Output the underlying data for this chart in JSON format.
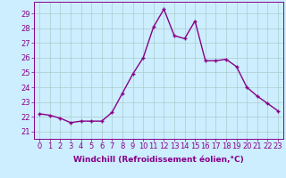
{
  "x": [
    0,
    1,
    2,
    3,
    4,
    5,
    6,
    7,
    8,
    9,
    10,
    11,
    12,
    13,
    14,
    15,
    16,
    17,
    18,
    19,
    20,
    21,
    22,
    23
  ],
  "y": [
    22.2,
    22.1,
    21.9,
    21.6,
    21.7,
    21.7,
    21.7,
    22.3,
    23.6,
    24.9,
    26.0,
    28.1,
    29.3,
    27.5,
    27.3,
    28.5,
    25.8,
    25.8,
    25.9,
    25.4,
    24.0,
    23.4,
    22.9,
    22.4
  ],
  "line_color": "#880088",
  "marker": "+",
  "bg_color": "#cceeff",
  "grid_color": "#aacccc",
  "xlabel": "Windchill (Refroidissement éolien,°C)",
  "ylabel_ticks": [
    21,
    22,
    23,
    24,
    25,
    26,
    27,
    28,
    29
  ],
  "xlim": [
    -0.5,
    23.5
  ],
  "ylim": [
    20.5,
    29.8
  ],
  "xlabel_fontsize": 6.5,
  "tick_fontsize": 6.0,
  "line_width": 1.0,
  "marker_size": 3.5
}
